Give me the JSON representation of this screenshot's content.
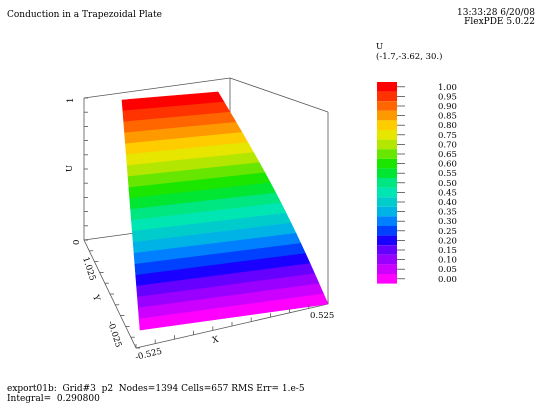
{
  "header": {
    "title": "Conduction in a Trapezoidal Plate",
    "timestamp": "13:33:28 6/20/08",
    "version": "FlexPDE 5.0.22"
  },
  "footer": {
    "stats": "export01b:  Grid#3  p2  Nodes=1394 Cells=657 RMS Err= 1.e-5",
    "integral": "Integral=  0.290800"
  },
  "legend": {
    "title": "U",
    "viewpoint": "(-1.7,-3.62, 30.)",
    "levels": [
      "1.00",
      "0.95",
      "0.90",
      "0.85",
      "0.80",
      "0.75",
      "0.70",
      "0.65",
      "0.60",
      "0.55",
      "0.50",
      "0.45",
      "0.40",
      "0.35",
      "0.30",
      "0.25",
      "0.20",
      "0.15",
      "0.10",
      "0.05",
      "0.00"
    ],
    "colors": [
      "#ff0000",
      "#ff3300",
      "#ff6600",
      "#ff9900",
      "#ffcc00",
      "#e6e600",
      "#b3e600",
      "#66e600",
      "#1ae600",
      "#00e633",
      "#00e680",
      "#00e6b3",
      "#00cccc",
      "#00b3e6",
      "#0080ff",
      "#0040ff",
      "#1a00ff",
      "#6600ff",
      "#9900ff",
      "#cc00ff",
      "#ff00ff"
    ]
  },
  "chart_data": {
    "type": "surface",
    "title": "Conduction in a Trapezoidal Plate",
    "variable": "U",
    "x_axis": {
      "label": "X",
      "ticks": [
        "-0.525",
        "0.525"
      ]
    },
    "y_axis": {
      "label": "Y",
      "ticks": [
        "-0.025",
        "1.025"
      ]
    },
    "z_axis": {
      "label": "U",
      "ticks": [
        "0",
        "1"
      ]
    },
    "value_range": [
      0.0,
      1.0
    ],
    "contour_levels": [
      1.0,
      0.95,
      0.9,
      0.85,
      0.8,
      0.75,
      0.7,
      0.65,
      0.6,
      0.55,
      0.5,
      0.45,
      0.4,
      0.35,
      0.3,
      0.25,
      0.2,
      0.15,
      0.1,
      0.05,
      0.0
    ]
  }
}
